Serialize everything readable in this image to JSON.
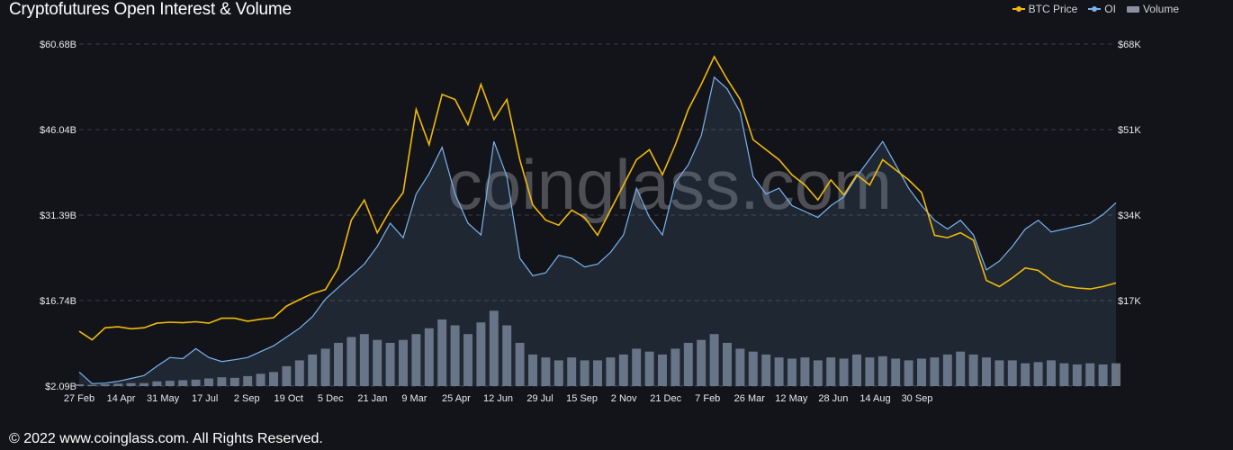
{
  "header": {
    "title": "Cryptofutures Open Interest & Volume"
  },
  "legend": [
    {
      "label": "BTC Price",
      "color": "#f0b90b",
      "kind": "line"
    },
    {
      "label": "OI",
      "color": "#7ab3ef",
      "kind": "line"
    },
    {
      "label": "Volume",
      "color": "#8b91a3",
      "kind": "box"
    }
  ],
  "watermark": "coinglass.com",
  "footer": "© 2022 www.coinglass.com. All Rights Reserved.",
  "chart_data": {
    "type": "line",
    "x_ticks": [
      "27 Feb",
      "14 Apr",
      "31 May",
      "17 Jul",
      "2 Sep",
      "19 Oct",
      "5 Dec",
      "21 Jan",
      "9 Mar",
      "25 Apr",
      "12 Jun",
      "29 Jul",
      "15 Sep",
      "2 Nov",
      "21 Dec",
      "7 Feb",
      "26 Mar",
      "12 May",
      "28 Jun",
      "14 Aug",
      "30 Sep"
    ],
    "y_left_ticks": [
      "$2.09B",
      "$16.74B",
      "$31.39B",
      "$46.04B",
      "$60.68B"
    ],
    "y_right_ticks": [
      "$17K",
      "$34K",
      "$51K",
      "$68K"
    ],
    "ylim_left": [
      2.09,
      60.68
    ],
    "ylim_right": [
      0,
      68000
    ],
    "series": [
      {
        "name": "BTC Price",
        "axis": "right",
        "color": "#f0b90b",
        "values": [
          10900,
          9200,
          11600,
          11800,
          11400,
          11600,
          12500,
          12700,
          12600,
          12800,
          12500,
          13500,
          13500,
          12900,
          13300,
          13600,
          15900,
          17200,
          18400,
          19200,
          23500,
          33000,
          37000,
          30500,
          35000,
          38500,
          55000,
          48000,
          58000,
          57000,
          52000,
          60000,
          53000,
          57000,
          45000,
          36000,
          33000,
          32000,
          35000,
          33500,
          30000,
          35000,
          40000,
          45000,
          47000,
          42000,
          48000,
          55000,
          60000,
          65500,
          61000,
          57000,
          49000,
          47000,
          45000,
          42000,
          40000,
          37000,
          41000,
          38000,
          42000,
          40000,
          45000,
          43000,
          41000,
          38500,
          30000,
          29500,
          30500,
          29000,
          21000,
          19800,
          21500,
          23500,
          23000,
          21000,
          19900,
          19500,
          19300,
          19800,
          20500
        ]
      },
      {
        "name": "OI",
        "axis": "left",
        "color": "#7ab3ef",
        "values": [
          4.5,
          2.5,
          2.6,
          2.9,
          3.4,
          3.9,
          5.5,
          7.0,
          6.8,
          8.5,
          7.0,
          6.3,
          6.6,
          7.0,
          8.0,
          9.0,
          10.5,
          12.0,
          14.0,
          17.0,
          19.0,
          21.0,
          23.0,
          26.0,
          30.0,
          27.5,
          35.0,
          38.5,
          43.0,
          35.0,
          30.0,
          28.0,
          44.0,
          38.0,
          24.0,
          21.0,
          21.5,
          24.5,
          24.0,
          22.5,
          23.0,
          25.0,
          28.0,
          36.0,
          31.0,
          28.0,
          37.0,
          40.0,
          45.0,
          55.0,
          53.0,
          49.0,
          38.0,
          35.0,
          36.0,
          33.0,
          32.0,
          31.0,
          33.0,
          34.5,
          38.0,
          41.0,
          44.0,
          40.0,
          36.0,
          33.0,
          30.5,
          29.0,
          30.5,
          28.0,
          22.0,
          23.5,
          26.0,
          29.0,
          30.5,
          28.5,
          29.0,
          29.5,
          30.0,
          31.5,
          33.5
        ]
      },
      {
        "name": "Volume",
        "axis": "left",
        "color": "#8b91a3",
        "kind": "bar",
        "values": [
          2.4,
          2.3,
          2.4,
          2.5,
          2.6,
          2.6,
          2.9,
          3.0,
          3.1,
          3.2,
          3.4,
          3.6,
          3.5,
          3.8,
          4.2,
          4.5,
          5.5,
          6.5,
          7.5,
          8.5,
          9.5,
          10.5,
          11.0,
          10.0,
          9.5,
          10.0,
          11.0,
          12.0,
          13.5,
          12.5,
          11.0,
          13.0,
          15.0,
          12.5,
          9.5,
          7.5,
          7.0,
          6.5,
          7.0,
          6.5,
          6.5,
          7.0,
          7.5,
          8.5,
          8.0,
          7.5,
          8.5,
          9.5,
          10.0,
          11.0,
          9.5,
          8.5,
          8.0,
          7.5,
          7.0,
          6.8,
          7.0,
          6.5,
          7.0,
          6.8,
          7.5,
          7.0,
          7.2,
          6.8,
          6.5,
          6.8,
          7.0,
          7.5,
          8.0,
          7.5,
          7.0,
          6.5,
          6.5,
          6.0,
          6.2,
          6.5,
          6.0,
          5.8,
          6.0,
          5.8,
          6.0
        ]
      }
    ]
  }
}
